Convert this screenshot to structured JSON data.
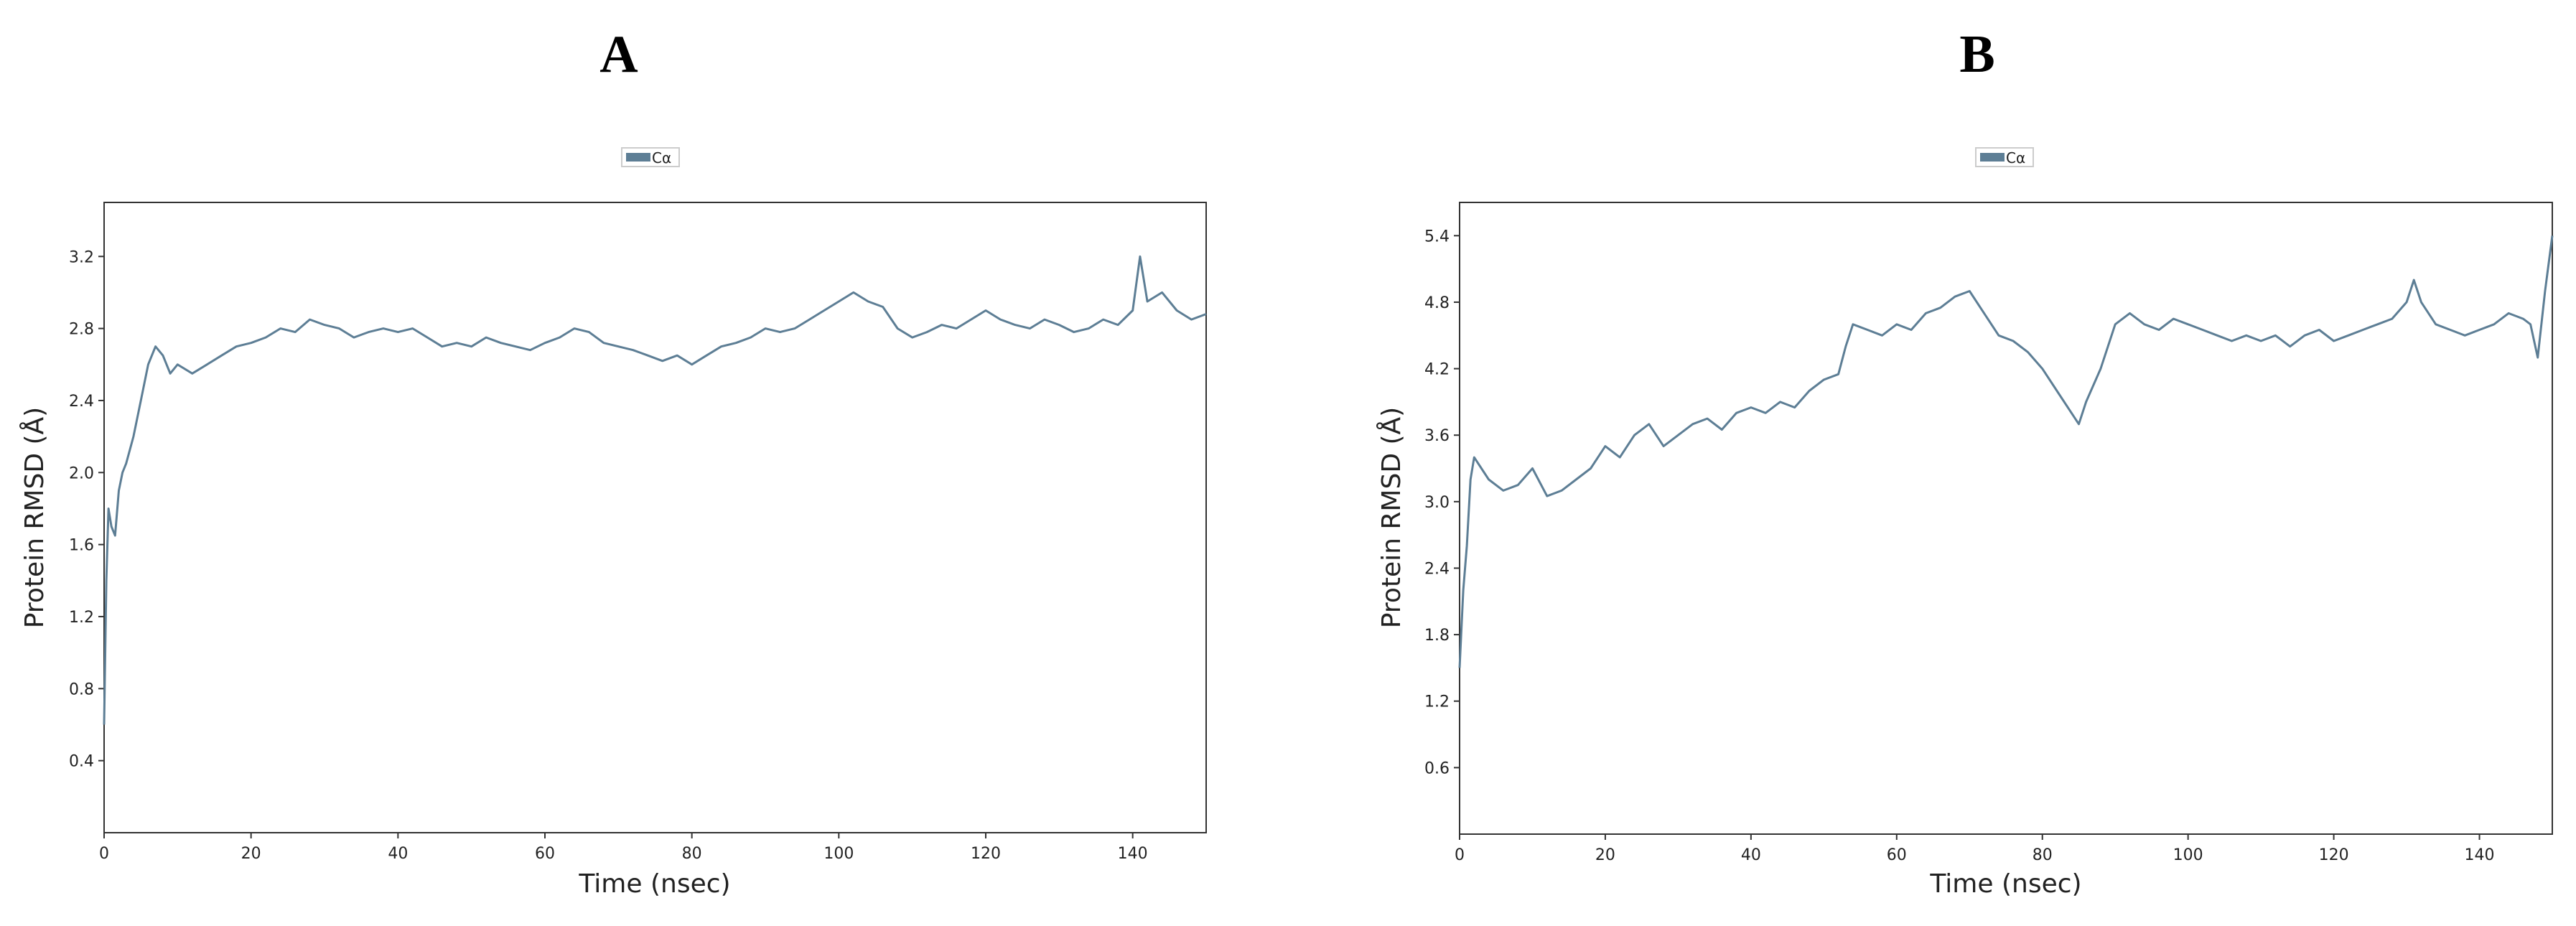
{
  "panels": [
    "A",
    "B"
  ],
  "chart_data": [
    {
      "type": "line",
      "panel": "A",
      "xlabel": "Time (nsec)",
      "ylabel": "Protein RMSD (Å)",
      "xlim": [
        0,
        150
      ],
      "ylim": [
        0,
        3.5
      ],
      "xticks": [
        0,
        20,
        40,
        60,
        80,
        100,
        120,
        140
      ],
      "yticks": [
        0.4,
        0.8,
        1.2,
        1.6,
        2.0,
        2.4,
        2.8,
        3.2
      ],
      "grid": false,
      "legend": "top-center",
      "color": "#5d7e95",
      "series": [
        {
          "name": "Cα",
          "x": [
            0,
            0.3,
            0.6,
            1,
            1.5,
            2,
            2.5,
            3,
            4,
            5,
            6,
            7,
            8,
            9,
            10,
            12,
            14,
            16,
            18,
            20,
            22,
            24,
            26,
            28,
            30,
            32,
            34,
            36,
            38,
            40,
            42,
            44,
            46,
            48,
            50,
            52,
            54,
            56,
            58,
            60,
            62,
            64,
            66,
            68,
            70,
            72,
            74,
            76,
            78,
            80,
            82,
            84,
            86,
            88,
            90,
            92,
            94,
            96,
            98,
            100,
            102,
            104,
            106,
            108,
            110,
            112,
            114,
            116,
            118,
            120,
            122,
            124,
            126,
            128,
            130,
            132,
            134,
            136,
            138,
            140,
            141,
            142,
            144,
            146,
            148,
            150
          ],
          "y": [
            0.6,
            1.4,
            1.8,
            1.7,
            1.65,
            1.9,
            2.0,
            2.05,
            2.2,
            2.4,
            2.6,
            2.7,
            2.65,
            2.55,
            2.6,
            2.55,
            2.6,
            2.65,
            2.7,
            2.72,
            2.75,
            2.8,
            2.78,
            2.85,
            2.82,
            2.8,
            2.75,
            2.78,
            2.8,
            2.78,
            2.8,
            2.75,
            2.7,
            2.72,
            2.7,
            2.75,
            2.72,
            2.7,
            2.68,
            2.72,
            2.75,
            2.8,
            2.78,
            2.72,
            2.7,
            2.68,
            2.65,
            2.62,
            2.65,
            2.6,
            2.65,
            2.7,
            2.72,
            2.75,
            2.8,
            2.78,
            2.8,
            2.85,
            2.9,
            2.95,
            3.0,
            2.95,
            2.92,
            2.8,
            2.75,
            2.78,
            2.82,
            2.8,
            2.85,
            2.9,
            2.85,
            2.82,
            2.8,
            2.85,
            2.82,
            2.78,
            2.8,
            2.85,
            2.82,
            2.9,
            3.2,
            2.95,
            3.0,
            2.9,
            2.85,
            2.88
          ]
        }
      ]
    },
    {
      "type": "line",
      "panel": "B",
      "xlabel": "Time (nsec)",
      "ylabel": "Protein RMSD (Å)",
      "xlim": [
        0,
        150
      ],
      "ylim": [
        0,
        5.7
      ],
      "xticks": [
        0,
        20,
        40,
        60,
        80,
        100,
        120,
        140
      ],
      "yticks": [
        0.6,
        1.2,
        1.8,
        2.4,
        3.0,
        3.6,
        4.2,
        4.8,
        5.4
      ],
      "grid": false,
      "legend": "top-center",
      "color": "#5d7e95",
      "series": [
        {
          "name": "Cα",
          "x": [
            0,
            0.5,
            1,
            1.5,
            2,
            3,
            4,
            6,
            8,
            10,
            12,
            14,
            16,
            18,
            20,
            22,
            24,
            26,
            28,
            30,
            32,
            34,
            36,
            38,
            40,
            42,
            44,
            46,
            48,
            50,
            52,
            53,
            54,
            56,
            58,
            60,
            62,
            64,
            66,
            68,
            70,
            72,
            74,
            76,
            78,
            80,
            82,
            84,
            85,
            86,
            88,
            90,
            92,
            94,
            96,
            98,
            100,
            102,
            104,
            106,
            108,
            110,
            112,
            114,
            116,
            118,
            120,
            122,
            124,
            126,
            128,
            130,
            131,
            132,
            134,
            136,
            138,
            140,
            142,
            144,
            146,
            147,
            148,
            149,
            150
          ],
          "y": [
            1.5,
            2.2,
            2.6,
            3.2,
            3.4,
            3.3,
            3.2,
            3.1,
            3.15,
            3.3,
            3.05,
            3.1,
            3.2,
            3.3,
            3.5,
            3.4,
            3.6,
            3.7,
            3.5,
            3.6,
            3.7,
            3.75,
            3.65,
            3.8,
            3.85,
            3.8,
            3.9,
            3.85,
            4.0,
            4.1,
            4.15,
            4.4,
            4.6,
            4.55,
            4.5,
            4.6,
            4.55,
            4.7,
            4.75,
            4.85,
            4.9,
            4.7,
            4.5,
            4.45,
            4.35,
            4.2,
            4.0,
            3.8,
            3.7,
            3.9,
            4.2,
            4.6,
            4.7,
            4.6,
            4.55,
            4.65,
            4.6,
            4.55,
            4.5,
            4.45,
            4.5,
            4.45,
            4.5,
            4.4,
            4.5,
            4.55,
            4.45,
            4.5,
            4.55,
            4.6,
            4.65,
            4.8,
            5.0,
            4.8,
            4.6,
            4.55,
            4.5,
            4.55,
            4.6,
            4.7,
            4.65,
            4.6,
            4.3,
            4.9,
            5.4
          ]
        }
      ]
    }
  ]
}
